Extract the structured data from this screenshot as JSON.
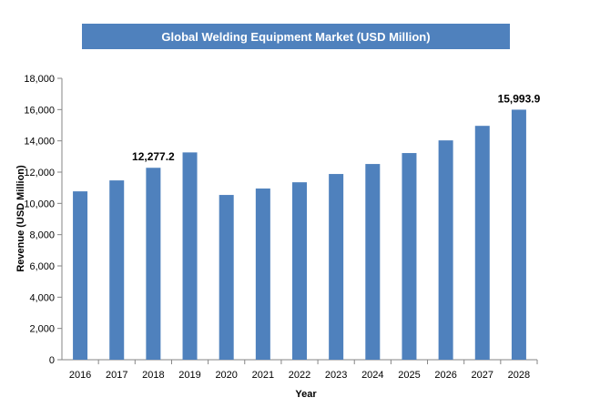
{
  "chart_data": {
    "type": "bar",
    "title": "Global Welding Equipment Market (USD Million)",
    "xlabel": "Year",
    "ylabel": "Revenue (USD Million)",
    "categories": [
      "2016",
      "2017",
      "2018",
      "2019",
      "2020",
      "2021",
      "2022",
      "2023",
      "2024",
      "2025",
      "2026",
      "2027",
      "2028"
    ],
    "values": [
      10770,
      11470,
      12277.2,
      13260,
      10540,
      10950,
      11350,
      11880,
      12520,
      13220,
      14030,
      14960,
      15993.9
    ],
    "data_labels": [
      {
        "index": 2,
        "text": "12,277.2"
      },
      {
        "index": 12,
        "text": "15,993.9"
      }
    ],
    "ylim": [
      0,
      18000
    ],
    "yticks": [
      "0",
      "2,000",
      "4,000",
      "6,000",
      "8,000",
      "10,000",
      "12,000",
      "14,000",
      "16,000",
      "18,000"
    ],
    "grid": false,
    "legend": "none",
    "bar_color": "#4f81bd"
  }
}
